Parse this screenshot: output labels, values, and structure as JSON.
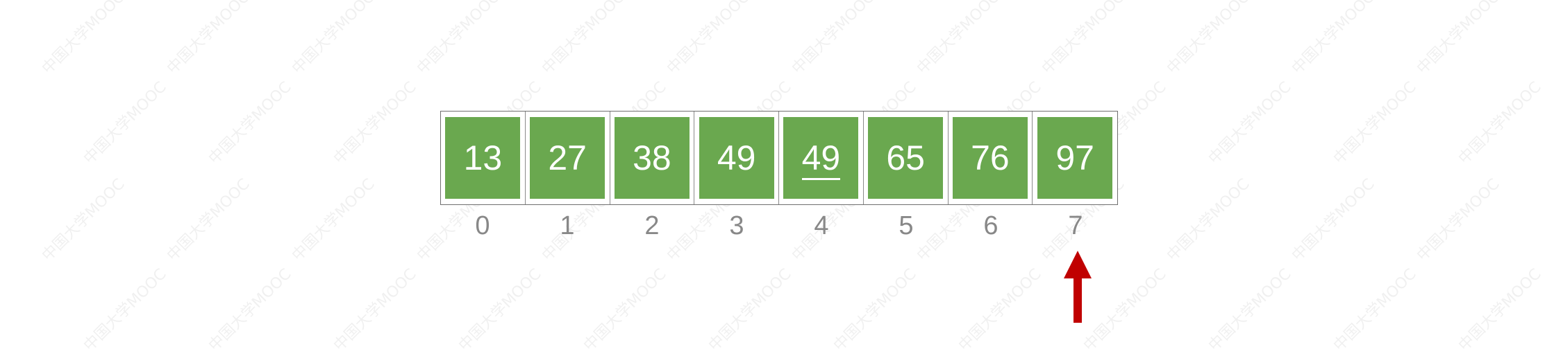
{
  "watermark": "中国大学MOOC",
  "array": {
    "cells": [
      {
        "value": "13",
        "underlined": false
      },
      {
        "value": "27",
        "underlined": false
      },
      {
        "value": "38",
        "underlined": false
      },
      {
        "value": "49",
        "underlined": false
      },
      {
        "value": "49",
        "underlined": true
      },
      {
        "value": "65",
        "underlined": false
      },
      {
        "value": "76",
        "underlined": false
      },
      {
        "value": "97",
        "underlined": false
      }
    ],
    "indices": [
      "0",
      "1",
      "2",
      "3",
      "4",
      "5",
      "6",
      "7"
    ],
    "pointer_index": 7
  },
  "colors": {
    "cell_fill": "#6aa84f",
    "cell_text": "#ffffff",
    "index_text": "#888888",
    "pointer": "#c00000"
  }
}
